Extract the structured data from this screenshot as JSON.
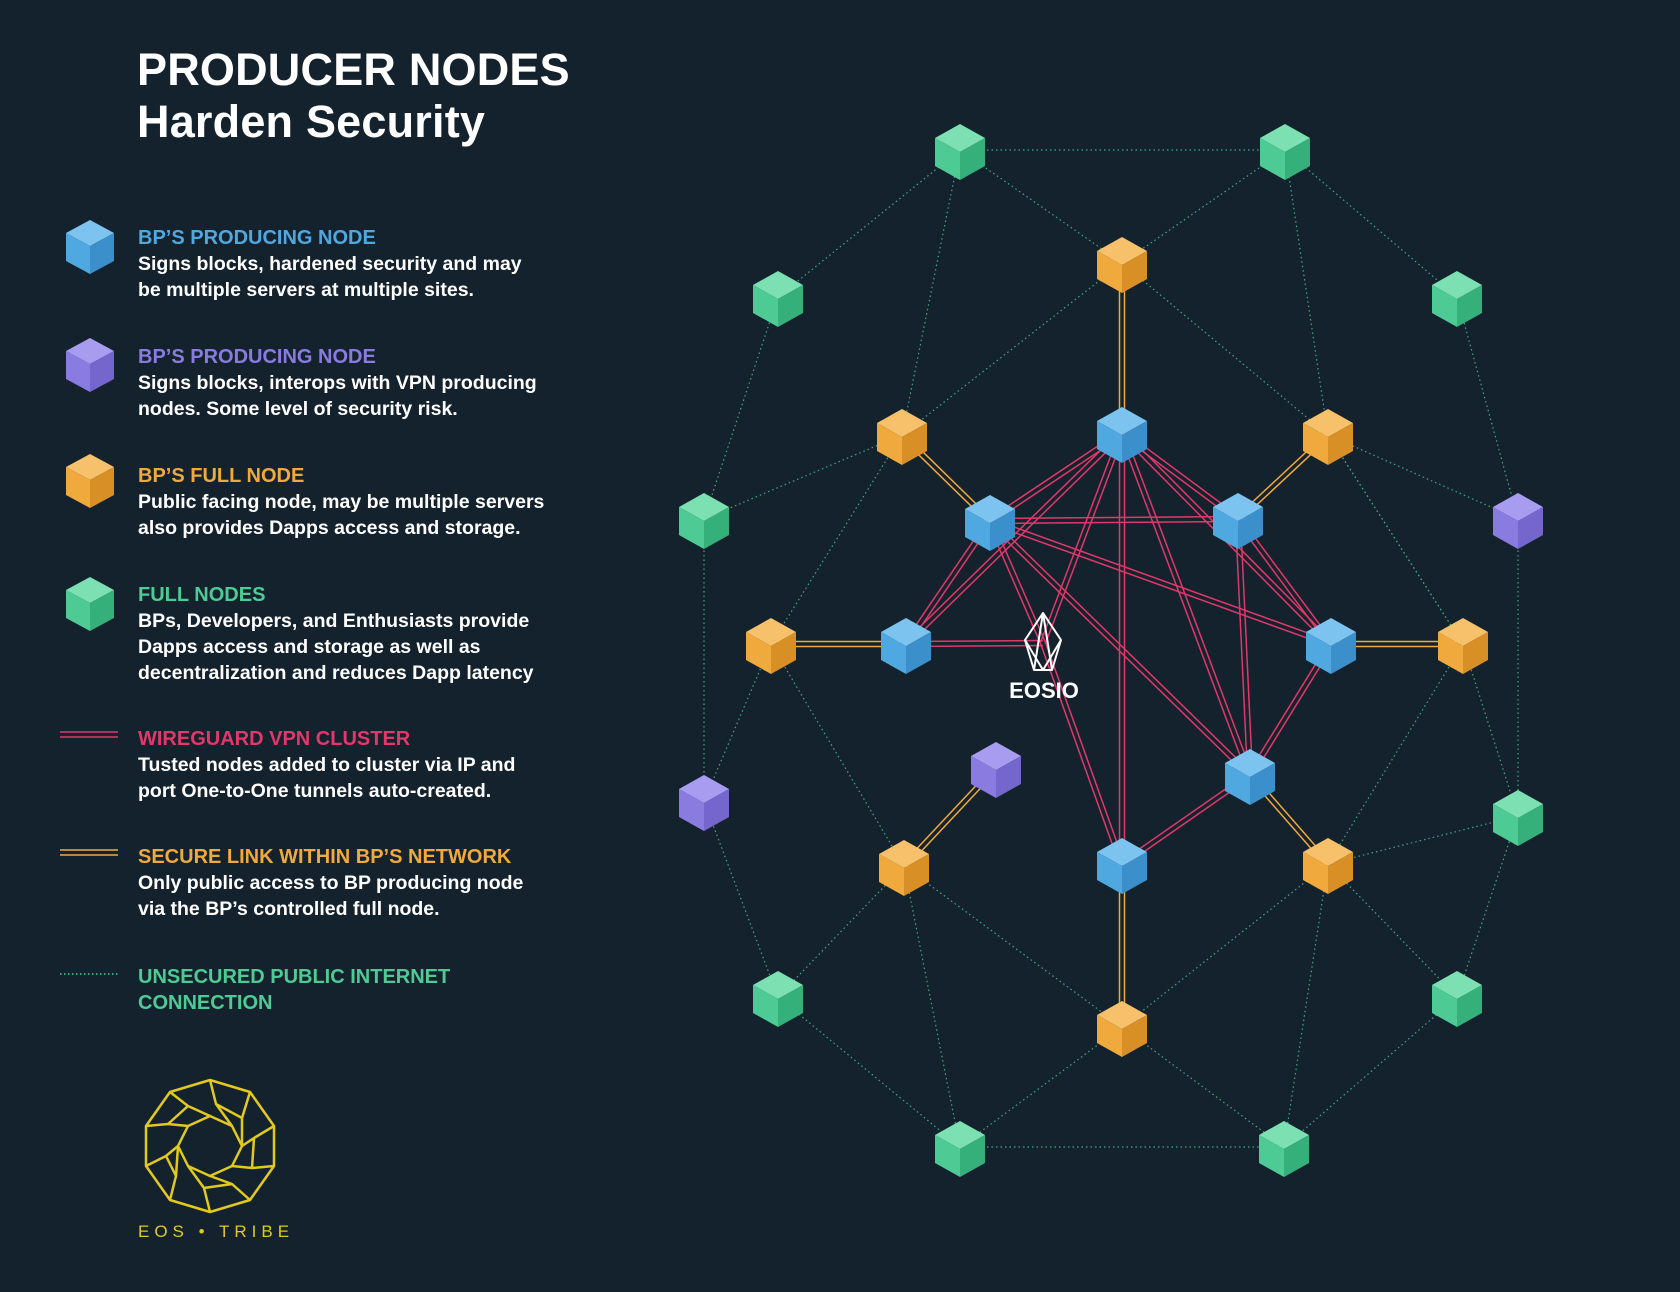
{
  "title": {
    "line1": "PRODUCER NODES",
    "line2": "Harden Security"
  },
  "legend": [
    {
      "title": "BP’S PRODUCING NODE",
      "lines": [
        "Signs blocks, hardened security and may",
        "be multiple servers at multiple sites."
      ],
      "color": "#4fa8e0",
      "icon": "blue-cube-icon"
    },
    {
      "title": "BP’S PRODUCING NODE",
      "lines": [
        "Signs blocks, interops with VPN producing",
        "nodes. Some level of security risk."
      ],
      "color": "#8a7be0",
      "icon": "purple-cube-icon"
    },
    {
      "title": "BP’S FULL NODE",
      "lines": [
        "Public facing node, may be multiple servers",
        "also provides Dapps access and storage."
      ],
      "color": "#f0a93c",
      "icon": "orange-cube-icon"
    },
    {
      "title": "FULL NODES",
      "lines": [
        "BPs, Developers, and Enthusiasts provide",
        "Dapps access and storage as well as",
        "decentralization and reduces Dapp latency"
      ],
      "color": "#4ecb94",
      "icon": "green-cube-icon"
    },
    {
      "title": "WIREGUARD VPN CLUSTER",
      "lines": [
        "Tusted nodes added to cluster via IP and",
        "port One-to-One tunnels auto-created."
      ],
      "color": "#e0386a",
      "icon": "double-line-icon"
    },
    {
      "title": "SECURE LINK WITHIN BP’S NETWORK",
      "lines": [
        "Only public access to BP producing node",
        "via the BP’s controlled full node."
      ],
      "color": "#f0a93c",
      "icon": "double-line-icon"
    },
    {
      "title": "UNSECURED PUBLIC INTERNET",
      "lines": [],
      "title2": "CONNECTION",
      "color": "#4ecb94",
      "icon": "dotted-line-icon"
    }
  ],
  "center_label": "EOSIO",
  "logo": {
    "text": "EOS • TRIBE",
    "color": "#e2c91f"
  },
  "colors": {
    "background": "#14222d",
    "blue": "#4fa8e0",
    "purple": "#8a7be0",
    "orange": "#f0a93c",
    "green": "#4ecb94",
    "vpn": "#e0386a"
  }
}
